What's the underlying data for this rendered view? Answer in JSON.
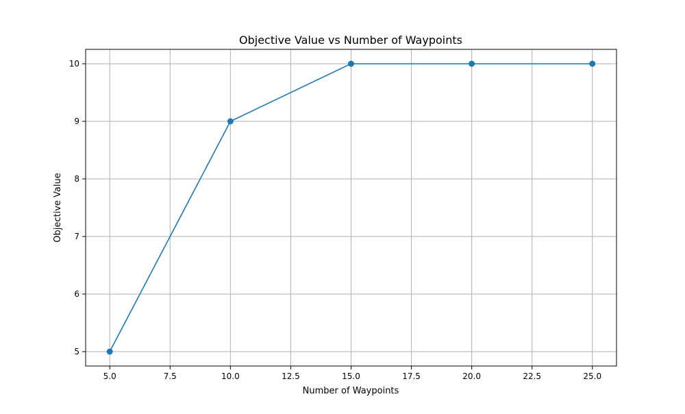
{
  "chart_data": {
    "type": "line",
    "title": "Objective Value vs Number of Waypoints",
    "xlabel": "Number of Waypoints",
    "ylabel": "Objective Value",
    "xlim": [
      4.0,
      26.0
    ],
    "ylim": [
      4.75,
      10.25
    ],
    "xticks": [
      5.0,
      7.5,
      10.0,
      12.5,
      15.0,
      17.5,
      20.0,
      22.5,
      25.0
    ],
    "xtick_labels": [
      "5.0",
      "7.5",
      "10.0",
      "12.5",
      "15.0",
      "17.5",
      "20.0",
      "22.5",
      "25.0"
    ],
    "yticks": [
      5,
      6,
      7,
      8,
      9,
      10
    ],
    "ytick_labels": [
      "5",
      "6",
      "7",
      "8",
      "9",
      "10"
    ],
    "grid": true,
    "series": [
      {
        "x": [
          5,
          10,
          15,
          20,
          25
        ],
        "y": [
          5,
          9,
          10,
          10,
          10
        ],
        "color": "#1f77b4",
        "marker": "circle"
      }
    ]
  }
}
